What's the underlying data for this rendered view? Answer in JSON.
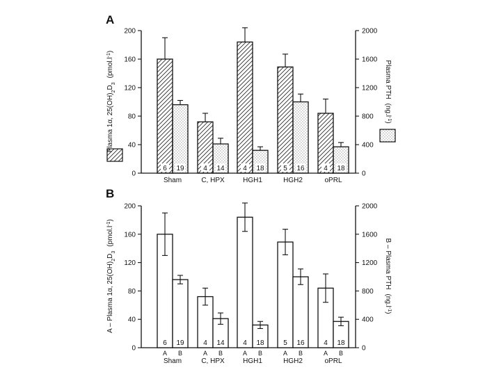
{
  "chart_data": [
    {
      "panel": "A",
      "type": "bar",
      "categories": [
        "Sham",
        "C, HPX",
        "HGH1",
        "HGH2",
        "oPRL"
      ],
      "left_axis": {
        "label_main": "Plasma 1α, 25(OH)",
        "label_sub1": "2",
        "label_mid": "D",
        "label_sub2": "3",
        "label_units": "(pmol.l",
        "label_exp": "-1",
        "label_close": ")",
        "ylim": [
          0,
          200
        ],
        "ticks": [
          "0",
          "40",
          "80",
          "120",
          "160",
          "200"
        ]
      },
      "right_axis": {
        "label_main": "Plasma PTH",
        "label_units": "(ng.l",
        "label_exp": "-1",
        "label_close": ")",
        "ylim": [
          0,
          2000
        ],
        "ticks": [
          "0",
          "400",
          "800",
          "1200",
          "1600",
          "2000"
        ]
      },
      "series": [
        {
          "name": "Plasma 1α,25(OH)2D3",
          "axis": "left",
          "pattern": "hatch",
          "values": [
            160,
            72,
            184,
            149,
            84
          ],
          "errors": [
            30,
            12,
            20,
            18,
            20
          ],
          "n": [
            "6",
            "4",
            "4",
            "5",
            "4"
          ]
        },
        {
          "name": "Plasma PTH",
          "axis": "right",
          "pattern": "stipple",
          "values": [
            960,
            410,
            320,
            1000,
            370
          ],
          "errors": [
            60,
            80,
            50,
            110,
            60
          ],
          "n": [
            "19",
            "14",
            "18",
            "16",
            "18"
          ]
        }
      ]
    },
    {
      "panel": "B",
      "type": "bar",
      "categories": [
        "Sham",
        "C, HPX",
        "HGH1",
        "HGH2",
        "oPRL"
      ],
      "bar_labels": [
        "A",
        "B"
      ],
      "left_axis": {
        "label_prefix": "A  –  ",
        "label_main": "Plasma 1α, 25(OH)",
        "label_sub1": "2",
        "label_mid": "D",
        "label_sub2": "3",
        "label_units": "(pmol.l",
        "label_exp": "-1",
        "label_close": ")",
        "ylim": [
          0,
          200
        ],
        "ticks": [
          "0",
          "40",
          "80",
          "120",
          "160",
          "200"
        ]
      },
      "right_axis": {
        "label_prefix": "B  –  ",
        "label_main": "Plasma PTH",
        "label_units": "(ng.l",
        "label_exp": "-1",
        "label_close": ")",
        "ylim": [
          0,
          2000
        ],
        "ticks": [
          "0",
          "400",
          "800",
          "1200",
          "1600",
          "2000"
        ]
      },
      "series": [
        {
          "name": "A – Plasma 1α,25(OH)2D3",
          "axis": "left",
          "pattern": "none",
          "values": [
            160,
            72,
            184,
            149,
            84
          ],
          "errors": [
            30,
            12,
            20,
            18,
            20
          ],
          "n": [
            "6",
            "4",
            "4",
            "5",
            "4"
          ]
        },
        {
          "name": "B – Plasma PTH",
          "axis": "right",
          "pattern": "none",
          "values": [
            960,
            410,
            320,
            1000,
            370
          ],
          "errors": [
            60,
            80,
            50,
            110,
            60
          ],
          "n": [
            "19",
            "14",
            "18",
            "16",
            "18"
          ]
        }
      ]
    }
  ]
}
